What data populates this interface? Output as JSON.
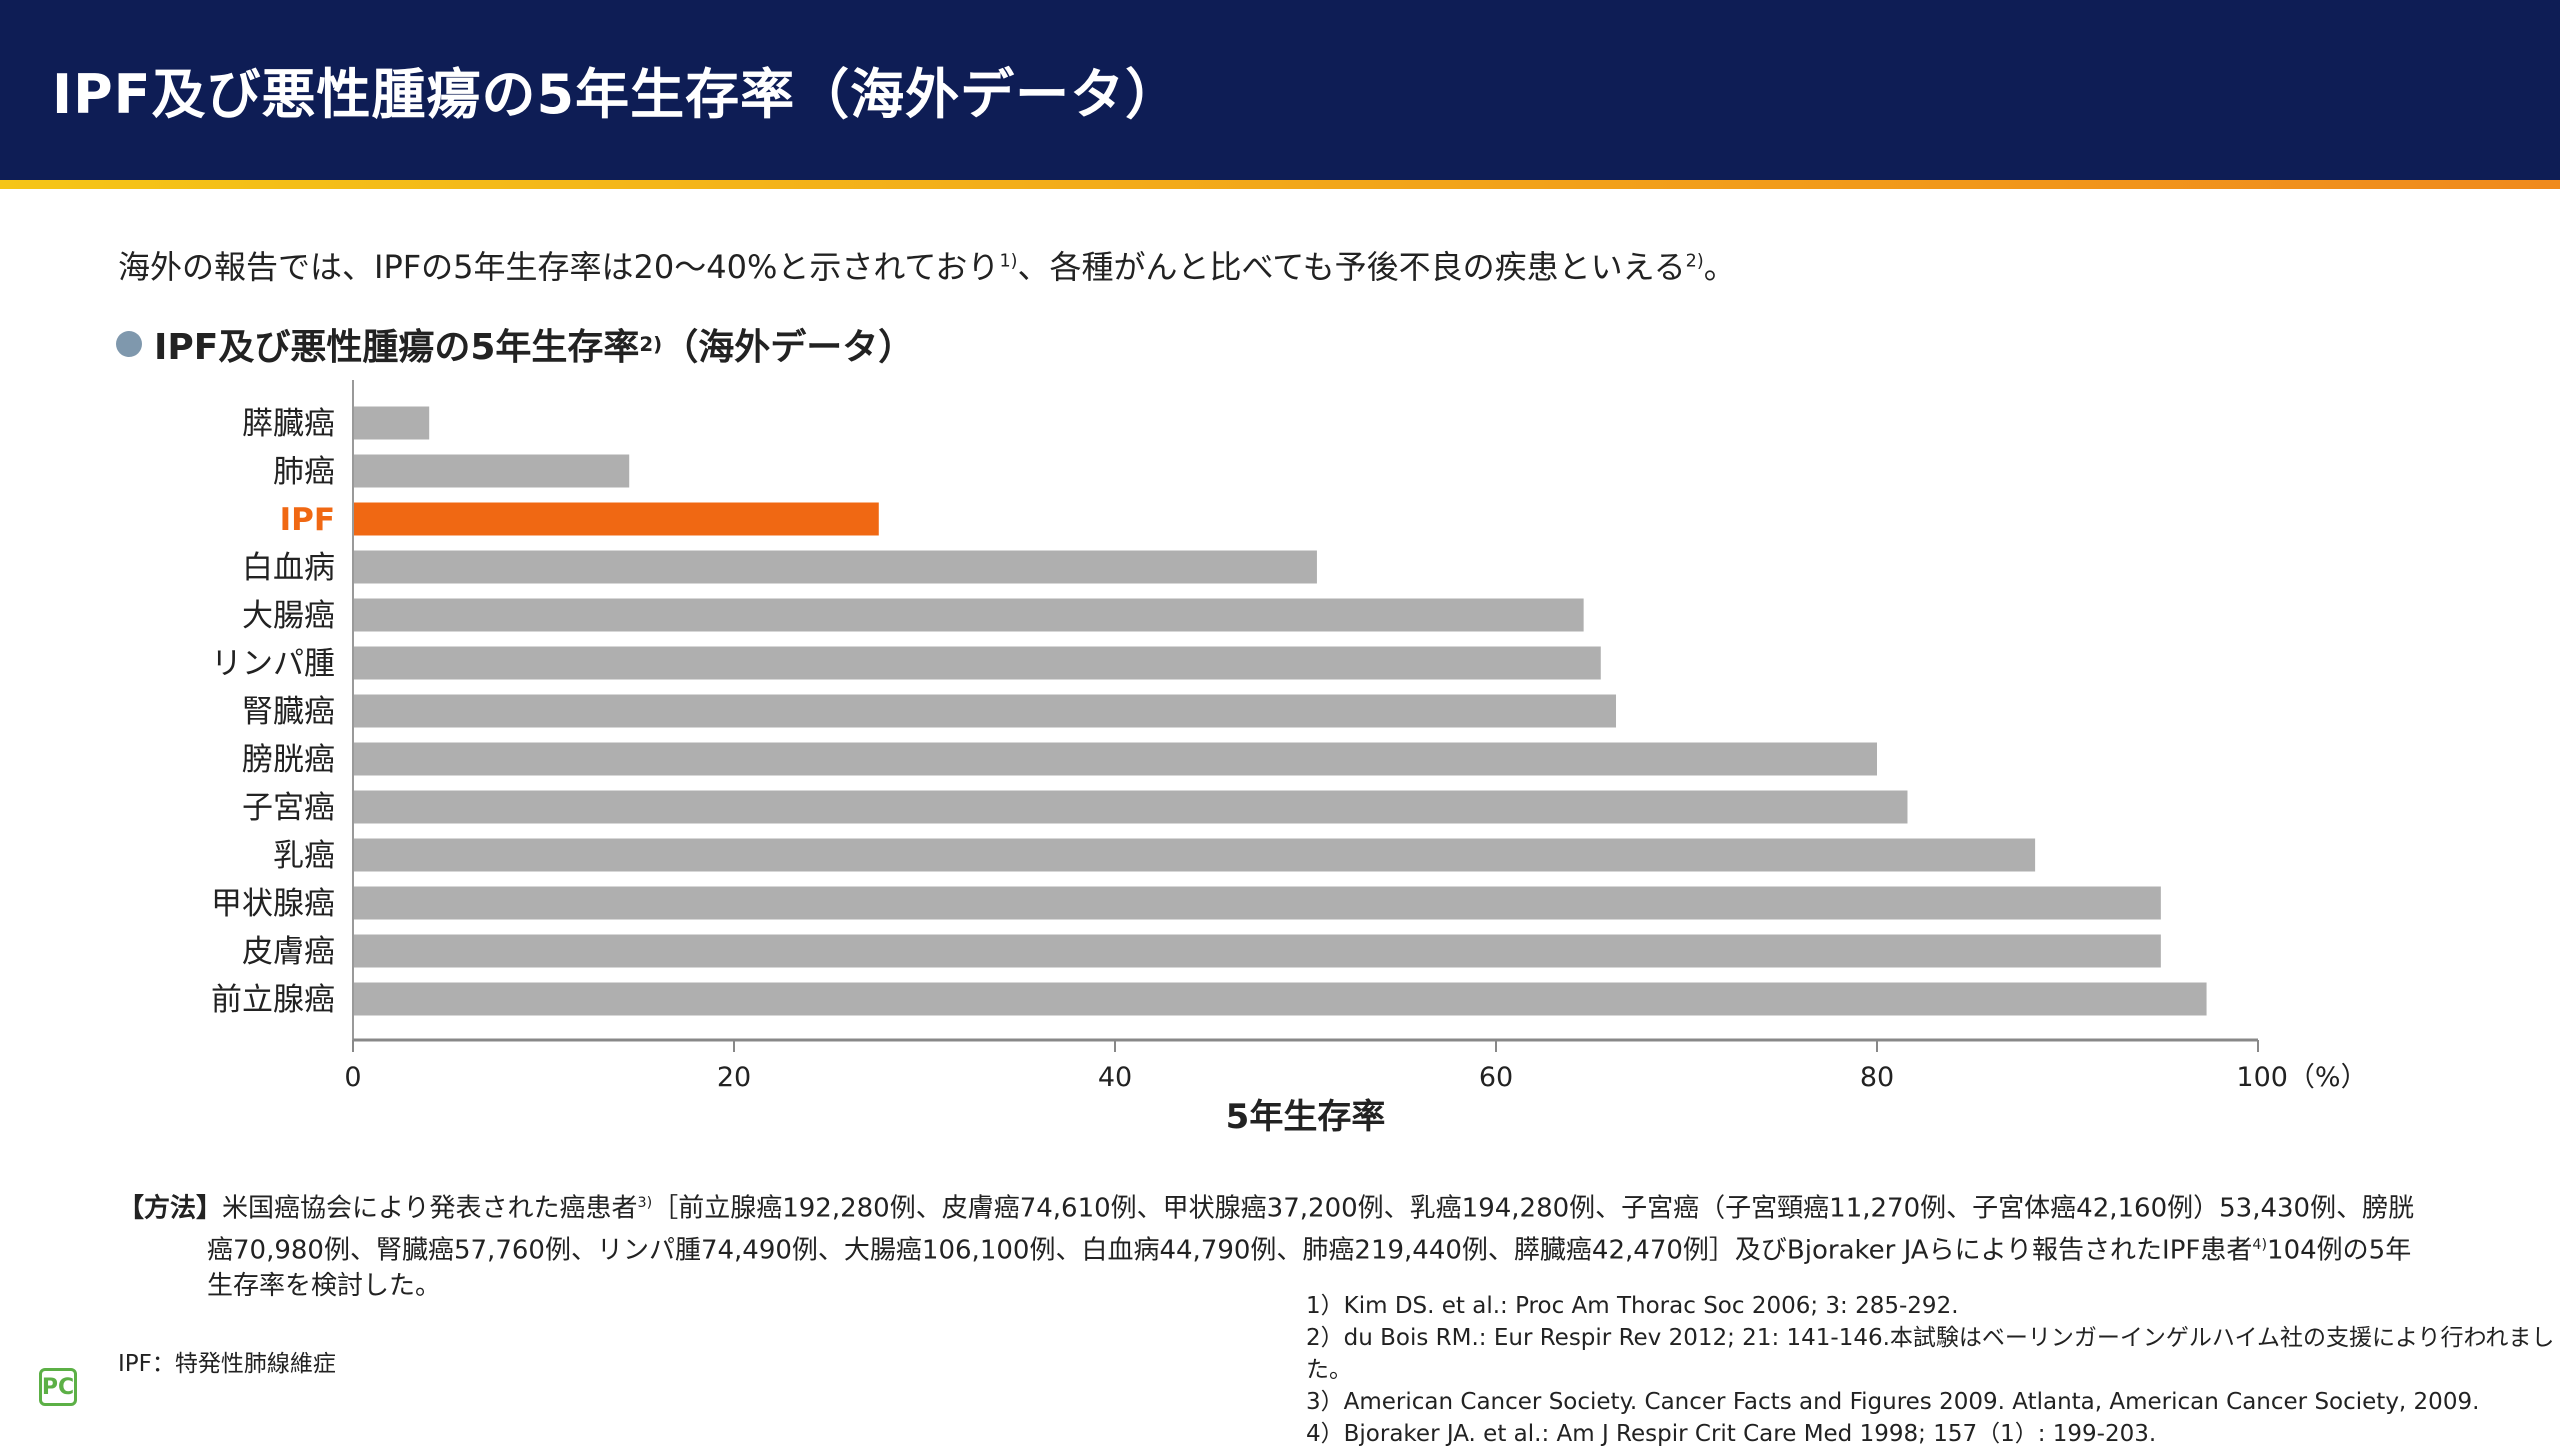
{
  "header": {
    "title": "IPF及び悪性腫瘍の5年生存率（海外データ）"
  },
  "lead": {
    "text": "海外の報告では、IPFの5年生存率は20〜40%と示されており",
    "sup1": "1)",
    "text2": "、各種がんと比べても予後不良の疾患といえる",
    "sup2": "2)",
    "text3": "。"
  },
  "subhead": {
    "text": "IPF及び悪性腫瘍の5年生存率",
    "sup": "2)",
    "text2": "（海外データ）"
  },
  "chart_data": {
    "type": "bar",
    "orientation": "horizontal",
    "categories": [
      "膵臓癌",
      "肺癌",
      "IPF",
      "白血病",
      "大腸癌",
      "リンパ腫",
      "腎臓癌",
      "膀胱癌",
      "子宮癌",
      "乳癌",
      "甲状腺癌",
      "皮膚癌",
      "前立腺癌"
    ],
    "values": [
      4,
      14.5,
      27.6,
      50.6,
      64.6,
      65.5,
      66.3,
      80,
      81.6,
      88.3,
      94.9,
      94.9,
      97.3
    ],
    "highlight": "IPF",
    "colors": {
      "bar": "#afafaf",
      "highlight": "#f06813"
    },
    "xlabel": "5年生存率",
    "xticks": [
      "0",
      "20",
      "40",
      "60",
      "80",
      "100（%）"
    ],
    "xtick_values": [
      0,
      20,
      40,
      60,
      80,
      100
    ],
    "xlim": [
      0,
      100
    ],
    "grid": false
  },
  "method": {
    "tag": "【方法】",
    "line1": "米国癌協会により発表された癌患者",
    "sup1": "3)",
    "line1b": "［前立腺癌192,280例、皮膚癌74,610例、甲状腺癌37,200例、乳癌194,280例、子宮癌（子宮頸癌11,270例、子宮体癌42,160例）53,430例、膀胱",
    "line2": "癌70,980例、腎臓癌57,760例、リンパ腫74,490例、大腸癌106,100例、白血病44,790例、肺癌219,440例、膵臓癌42,470例］及びBjoraker JAらにより報告されたIPF患者",
    "sup2": "4)",
    "line2b": "104例の5年",
    "line3": "生存率を検討した。"
  },
  "references": [
    "1）Kim DS. et al.: Proc Am Thorac Soc 2006; 3: 285-292.",
    "2）du Bois RM.: Eur Respir Rev 2012; 21: 141-146.本試験はベーリンガーインゲルハイム社の支援により行われました。",
    "3）American Cancer Society. Cancer Facts and Figures 2009. Atlanta, American Cancer Society, 2009.",
    "4）Bjoraker JA. et al.: Am J Respir Crit Care Med 1998; 157（1）: 199-203."
  ],
  "note": "IPF：特発性肺線維症",
  "logo": "PC"
}
